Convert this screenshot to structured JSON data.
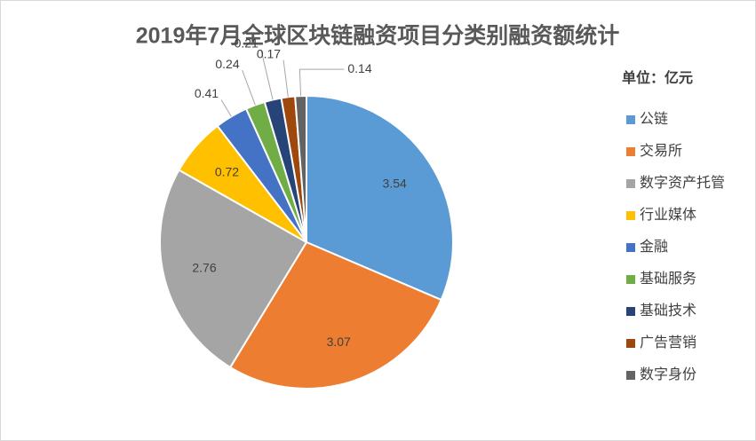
{
  "chart_data": {
    "type": "pie",
    "title": "2019年7月全球区块链融资项目分类别融资额统计",
    "unit_label": "单位：亿元",
    "categories": [
      "公链",
      "交易所",
      "数字资产托管",
      "行业媒体",
      "金融",
      "基础服务",
      "基础技术",
      "广告营销",
      "数字身份"
    ],
    "values": [
      3.54,
      3.07,
      2.76,
      0.72,
      0.41,
      0.24,
      0.21,
      0.17,
      0.14
    ],
    "colors": [
      "#5b9bd5",
      "#ed7d31",
      "#a5a5a5",
      "#ffc000",
      "#4472c4",
      "#70ad47",
      "#264478",
      "#9e480e",
      "#636363"
    ],
    "legend": "right"
  }
}
